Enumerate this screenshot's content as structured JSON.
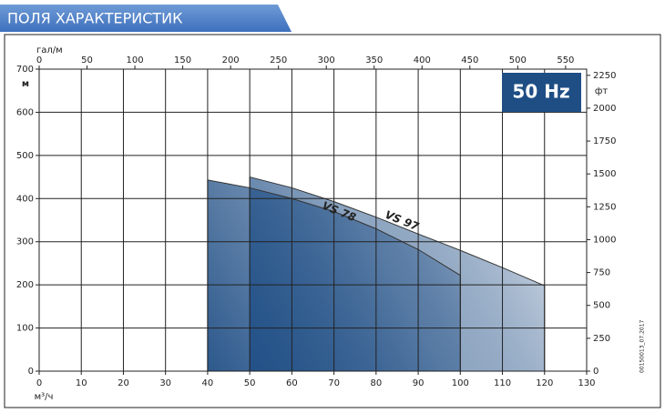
{
  "chart_data": {
    "type": "area",
    "title": "ПОЛЯ ХАРАКТЕРИСТИК",
    "badge": "50 Hz",
    "x_label": "м³/ч",
    "y_label": "м",
    "x2_label": "гал/м",
    "y2_label": "фт",
    "code": "00150013_07.2017",
    "grid": true,
    "xlim": [
      0,
      130
    ],
    "xticks": [
      0,
      10,
      20,
      30,
      40,
      50,
      60,
      70,
      80,
      90,
      100,
      110,
      120,
      130
    ],
    "ylim": [
      0,
      700
    ],
    "yticks": [
      0,
      100,
      200,
      300,
      400,
      500,
      600,
      700
    ],
    "x2lim": [
      0,
      572
    ],
    "x2ticks": [
      0,
      50,
      100,
      150,
      200,
      250,
      300,
      350,
      400,
      450,
      500,
      550
    ],
    "y2lim": [
      0,
      2297
    ],
    "y2ticks": [
      0,
      250,
      500,
      750,
      1000,
      1250,
      1500,
      1750,
      2000,
      2250
    ],
    "series": [
      {
        "name": "VS 97",
        "color": "#1f4e85",
        "x": [
          50,
          60,
          70,
          80,
          90,
          100,
          110,
          120
        ],
        "values": [
          450,
          425,
          393,
          357,
          318,
          280,
          240,
          198
        ]
      },
      {
        "name": "VS 78",
        "color": "#1f4e85",
        "x": [
          40,
          50,
          60,
          70,
          80,
          90,
          100
        ],
        "values": [
          443,
          425,
          400,
          370,
          330,
          282,
          222
        ]
      }
    ]
  }
}
